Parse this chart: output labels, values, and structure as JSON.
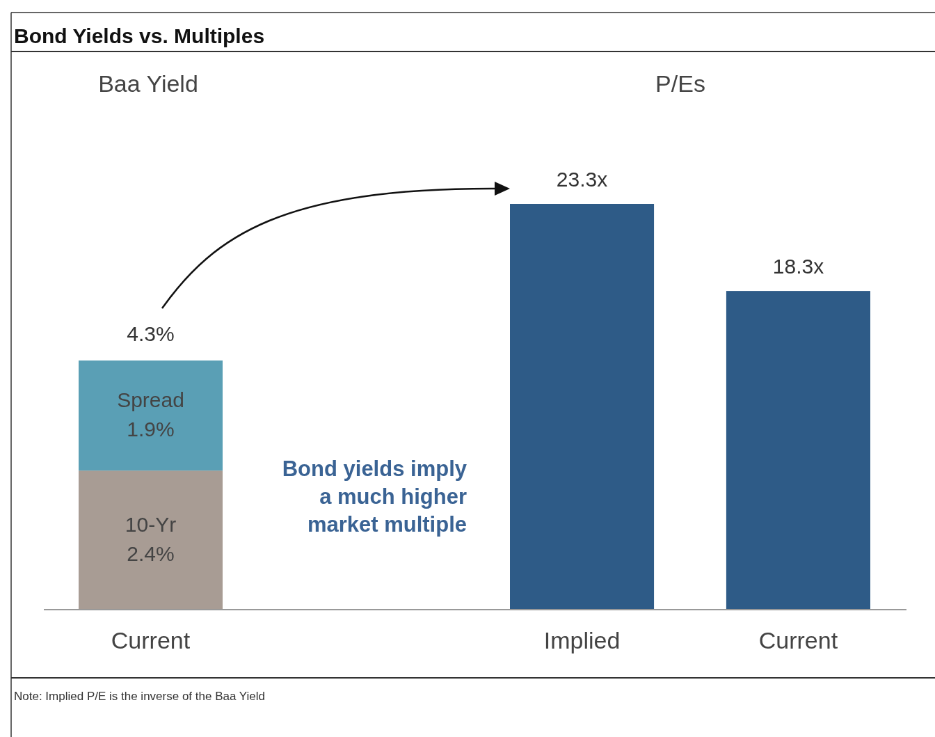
{
  "chart_data": [
    {
      "type": "bar",
      "title": "Bond Yields vs. Multiples",
      "subtitle": "Baa Yield",
      "categories": [
        "Current"
      ],
      "stacked": true,
      "series": [
        {
          "name": "10-Yr",
          "color": "#a89c94",
          "values": [
            2.4
          ],
          "value_labels": [
            "2.4%"
          ]
        },
        {
          "name": "Spread",
          "color": "#5a9fb5",
          "values": [
            1.9
          ],
          "value_labels": [
            "1.9%"
          ]
        }
      ],
      "totals": [
        "4.3%"
      ],
      "annotations": [
        "Bond yields imply a much higher market multiple"
      ]
    },
    {
      "type": "bar",
      "subtitle": "P/Es",
      "categories": [
        "Implied",
        "Current"
      ],
      "series": [
        {
          "color": "#2e5b87",
          "values": [
            23.3,
            18.3
          ],
          "value_labels": [
            "23.3x",
            "18.3x"
          ]
        }
      ],
      "annotations": [
        "Note: Implied P/E is the inverse of the Baa Yield"
      ]
    }
  ]
}
